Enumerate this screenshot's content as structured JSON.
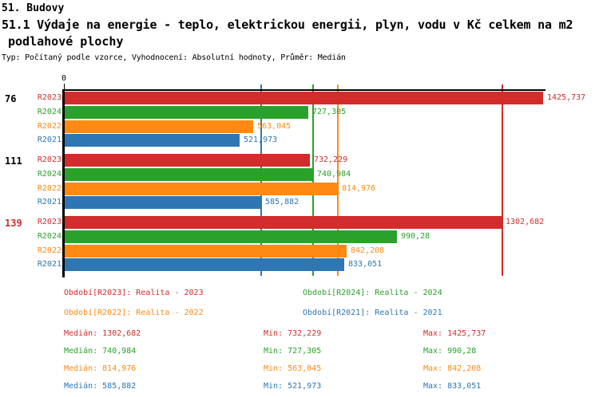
{
  "header": {
    "title": "51. Budovy",
    "subtitle_line1": "51.1 Výdaje na energie - teplo, elektrickou energii, plyn, vodu v Kč celkem na m2",
    "subtitle_line2": "podlahové plochy",
    "meta": "Typ: Počítaný podle vzorce, Vyhodnocení: Absolutní hodnoty, Průměr: Medián"
  },
  "colors": {
    "R2023": "#d22c2c",
    "R2024": "#2aa12b",
    "R2022": "#ff8912",
    "R2021": "#2e77b2",
    "axis": "#000000",
    "group_label_default": "#000000",
    "group_label_highlight": "#d22c2c"
  },
  "chart_data": {
    "type": "bar",
    "orientation": "horizontal",
    "axis_origin_label": "0",
    "xlim": [
      0,
      1425.737
    ],
    "series_order": [
      "R2023",
      "R2024",
      "R2022",
      "R2021"
    ],
    "groups": [
      {
        "label": "76",
        "highlighted": false,
        "bars": [
          {
            "series": "R2023",
            "value": 1425.737,
            "display": "1425,737"
          },
          {
            "series": "R2024",
            "value": 727.305,
            "display": "727,305"
          },
          {
            "series": "R2022",
            "value": 563.045,
            "display": "563,045"
          },
          {
            "series": "R2021",
            "value": 521.973,
            "display": "521,973"
          }
        ]
      },
      {
        "label": "111",
        "highlighted": false,
        "bars": [
          {
            "series": "R2023",
            "value": 732.229,
            "display": "732,229"
          },
          {
            "series": "R2024",
            "value": 740.984,
            "display": "740,984"
          },
          {
            "series": "R2022",
            "value": 814.976,
            "display": "814,976"
          },
          {
            "series": "R2021",
            "value": 585.882,
            "display": "585,882"
          }
        ]
      },
      {
        "label": "139",
        "highlighted": true,
        "bars": [
          {
            "series": "R2023",
            "value": 1302.682,
            "display": "1302,682"
          },
          {
            "series": "R2024",
            "value": 990.28,
            "display": "990,28"
          },
          {
            "series": "R2022",
            "value": 842.208,
            "display": "842,208"
          },
          {
            "series": "R2021",
            "value": 833.051,
            "display": "833,051"
          }
        ]
      }
    ],
    "median_lines": [
      {
        "series": "R2023",
        "value": 1302.682
      },
      {
        "series": "R2024",
        "value": 740.984
      },
      {
        "series": "R2022",
        "value": 814.976
      },
      {
        "series": "R2021",
        "value": 585.882
      }
    ]
  },
  "legend": {
    "items": [
      {
        "series": "R2023",
        "label": "Období[R2023]: Realita - 2023"
      },
      {
        "series": "R2024",
        "label": "Období[R2024]: Realita - 2024"
      },
      {
        "series": "R2022",
        "label": "Období[R2022]: Realita - 2022"
      },
      {
        "series": "R2021",
        "label": "Období[R2021]: Realita - 2021"
      }
    ]
  },
  "stats": {
    "median_label": "Medián",
    "min_label": "Min",
    "max_label": "Max",
    "rows": [
      {
        "series": "R2023",
        "median": "1302,682",
        "min": "732,229",
        "max": "1425,737"
      },
      {
        "series": "R2024",
        "median": "740,984",
        "min": "727,305",
        "max": "990,28"
      },
      {
        "series": "R2022",
        "median": "814,976",
        "min": "563,045",
        "max": "842,208"
      },
      {
        "series": "R2021",
        "median": "585,882",
        "min": "521,973",
        "max": "833,051"
      }
    ]
  }
}
